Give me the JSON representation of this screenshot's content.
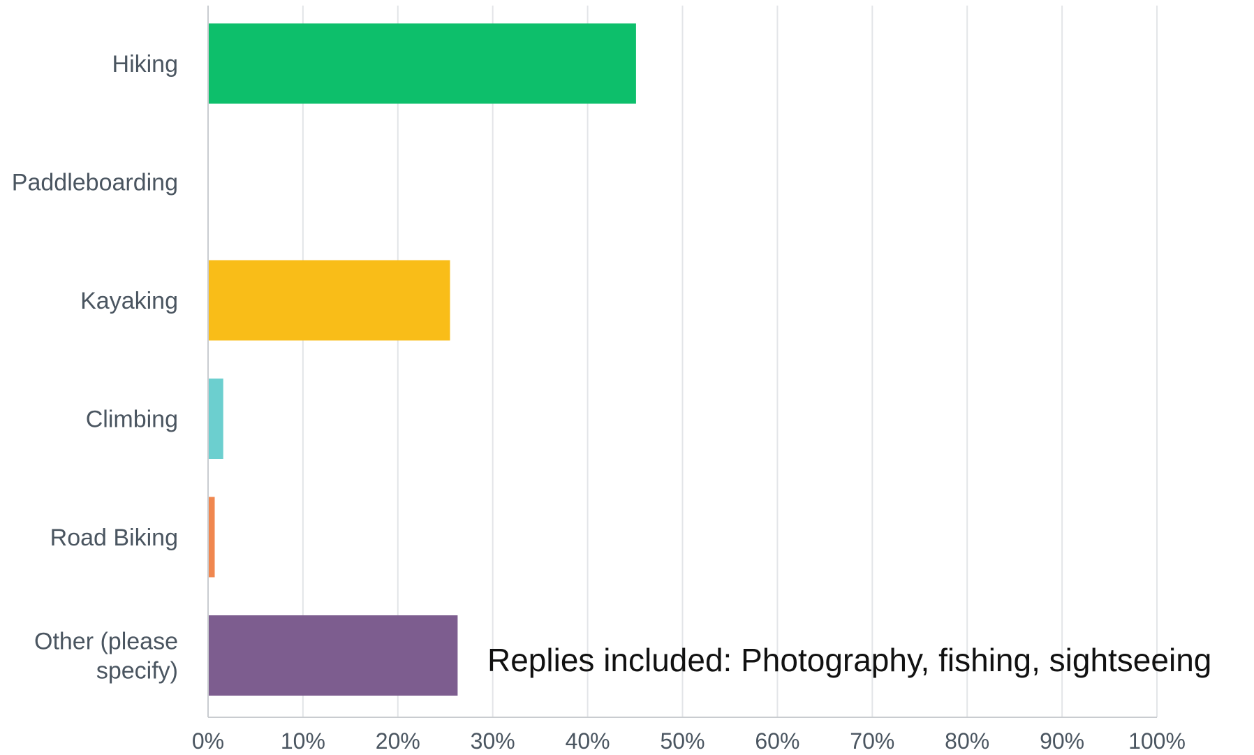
{
  "chart_data": {
    "type": "bar",
    "orientation": "horizontal",
    "categories": [
      [
        "Hiking"
      ],
      [
        "Paddleboarding"
      ],
      [
        "Kayaking"
      ],
      [
        "Climbing"
      ],
      [
        "Road Biking"
      ],
      [
        "Other (please",
        "specify)"
      ]
    ],
    "values": [
      45.1,
      0,
      25.5,
      1.6,
      0.7,
      26.3
    ],
    "colors": [
      "#0dbf6b",
      "#c3c8cc",
      "#f9bd18",
      "#6ccfcf",
      "#f0874f",
      "#7d5d8f"
    ],
    "xlim": [
      0,
      100
    ],
    "xticks": [
      "0%",
      "10%",
      "20%",
      "30%",
      "40%",
      "50%",
      "60%",
      "70%",
      "80%",
      "90%",
      "100%"
    ],
    "grid": true,
    "annotation": "Replies included: Photography, fishing, sightseeing"
  }
}
